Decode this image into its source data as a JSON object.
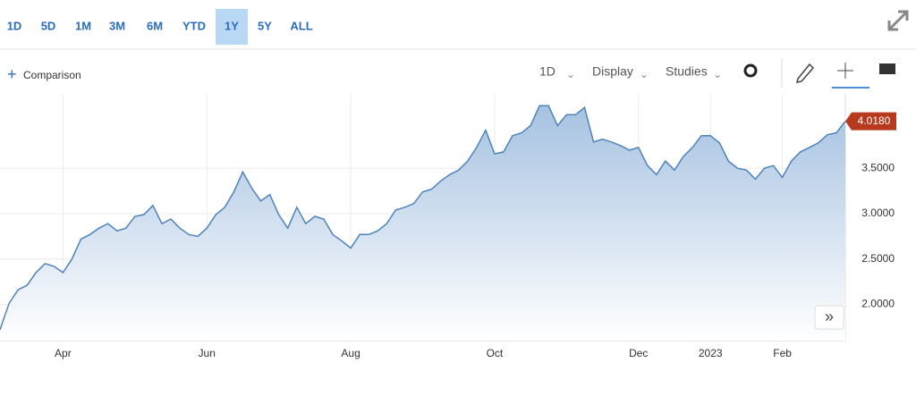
{
  "toolbar": {
    "ranges": [
      "1D",
      "5D",
      "1M",
      "3M",
      "6M",
      "YTD",
      "1Y",
      "5Y",
      "ALL"
    ],
    "active_index": 6,
    "comparison": "Comparison",
    "interval": "1D",
    "display": "Display",
    "studies": "Studies"
  },
  "chart_data": {
    "type": "area",
    "categories": [
      null,
      null,
      null,
      null,
      null,
      null,
      null,
      "Apr",
      null,
      null,
      null,
      null,
      null,
      null,
      null,
      null,
      null,
      null,
      null,
      null,
      null,
      null,
      null,
      "Jun",
      null,
      null,
      null,
      null,
      null,
      null,
      null,
      null,
      null,
      null,
      null,
      null,
      null,
      null,
      null,
      "Aug",
      null,
      null,
      null,
      null,
      null,
      null,
      null,
      null,
      null,
      null,
      null,
      null,
      null,
      null,
      null,
      "Oct",
      null,
      null,
      null,
      null,
      null,
      null,
      null,
      null,
      null,
      null,
      null,
      null,
      null,
      null,
      null,
      "Dec",
      null,
      null,
      null,
      null,
      null,
      null,
      null,
      "2023",
      null,
      null,
      null,
      null,
      null,
      null,
      null,
      "Feb",
      null,
      null,
      null,
      null,
      null,
      null,
      null
    ],
    "values": [
      1.72,
      2.01,
      2.16,
      2.21,
      2.35,
      2.45,
      2.42,
      2.35,
      2.5,
      2.72,
      2.77,
      2.84,
      2.89,
      2.81,
      2.84,
      2.97,
      2.99,
      3.09,
      2.89,
      2.94,
      2.84,
      2.77,
      2.75,
      2.84,
      2.99,
      3.07,
      3.24,
      3.46,
      3.28,
      3.14,
      3.21,
      2.99,
      2.84,
      3.07,
      2.89,
      2.97,
      2.94,
      2.77,
      2.7,
      2.62,
      2.77,
      2.77,
      2.81,
      2.89,
      3.04,
      3.07,
      3.11,
      3.24,
      3.27,
      3.36,
      3.43,
      3.48,
      3.58,
      3.73,
      3.92,
      3.66,
      3.68,
      3.86,
      3.89,
      3.97,
      4.19,
      4.19,
      3.97,
      4.09,
      4.09,
      4.17,
      3.79,
      3.82,
      3.79,
      3.75,
      3.7,
      3.73,
      3.53,
      3.43,
      3.58,
      3.48,
      3.63,
      3.73,
      3.86,
      3.86,
      3.78,
      3.58,
      3.5,
      3.48,
      3.38,
      3.5,
      3.53,
      3.4,
      3.58,
      3.68,
      3.73,
      3.78,
      3.87,
      3.89,
      4.018
    ],
    "last_label": "4.0180",
    "color": "#4d83bb",
    "ylim": [
      1.6,
      4.32
    ],
    "yticks": [
      {
        "value": 2.0,
        "label": "2.0000"
      },
      {
        "value": 2.5,
        "label": "2.5000"
      },
      {
        "value": 3.0,
        "label": "3.0000"
      },
      {
        "value": 3.5,
        "label": "3.5000"
      }
    ],
    "grid": true
  }
}
